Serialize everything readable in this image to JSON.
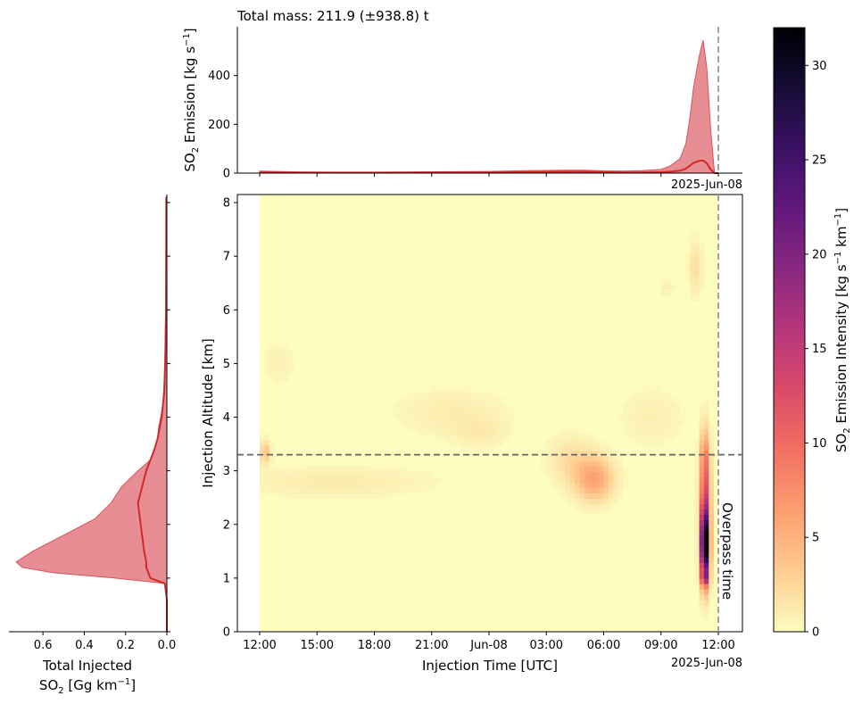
{
  "chart_data": [
    {
      "panel": "top",
      "type": "area",
      "title": "Total mass: 211.9 (±938.8) t",
      "ylabel_main": "SO",
      "ylabel_sub": "2",
      "ylabel_rest": " Emission [kg s",
      "ylabel_sup": "−1",
      "ylabel_close": "]",
      "ylim": [
        0,
        600
      ],
      "yticks": [
        0,
        200,
        400
      ],
      "x_corner_label": "2025-Jun-08",
      "x_hours": [
        0,
        2,
        4,
        6,
        8,
        10,
        12,
        14,
        16,
        17,
        18,
        19,
        20,
        21,
        21.5,
        22,
        22.3,
        22.5,
        22.7,
        23,
        23.2,
        23.4,
        23.6,
        23.8,
        24
      ],
      "upper": [
        8,
        5,
        4,
        4,
        5,
        6,
        7,
        10,
        12,
        12,
        9,
        8,
        10,
        15,
        30,
        60,
        120,
        220,
        350,
        480,
        545,
        430,
        180,
        0,
        0
      ],
      "line": [
        3,
        2,
        2,
        2,
        2,
        3,
        3,
        4,
        6,
        6,
        4,
        3,
        3,
        4,
        6,
        10,
        18,
        30,
        42,
        50,
        52,
        40,
        15,
        0,
        0
      ],
      "overpass_hour": 24
    },
    {
      "panel": "left",
      "type": "area",
      "xlabel_line1": "Total Injected",
      "xlabel_line2_main": "SO",
      "xlabel_line2_sub": "2",
      "xlabel_line2_rest": " [Gg km",
      "xlabel_line2_sup": "−1",
      "xlabel_line2_close": "]",
      "xlim": [
        0.75,
        0
      ],
      "xticks": [
        0.6,
        0.4,
        0.2,
        0.0
      ],
      "xticklabels": [
        "0.6",
        "0.4",
        "0.2",
        "0.0"
      ],
      "altitudes_km": [
        0,
        0.6,
        0.9,
        1.0,
        1.1,
        1.2,
        1.3,
        1.5,
        1.8,
        2.1,
        2.4,
        2.7,
        3.0,
        3.2,
        3.4,
        3.6,
        3.8,
        4.0,
        4.2,
        4.5,
        5.0,
        6.0,
        7.0,
        8.1
      ],
      "upper": [
        0,
        0,
        0.01,
        0.25,
        0.55,
        0.7,
        0.73,
        0.65,
        0.5,
        0.35,
        0.27,
        0.22,
        0.14,
        0.08,
        0.06,
        0.045,
        0.04,
        0.03,
        0.02,
        0.015,
        0.01,
        0.005,
        0.005,
        0.005
      ],
      "line": [
        0,
        0,
        0.01,
        0.08,
        0.09,
        0.1,
        0.1,
        0.11,
        0.12,
        0.13,
        0.14,
        0.12,
        0.1,
        0.08,
        0.06,
        0.045,
        0.035,
        0.025,
        0.02,
        0.012,
        0.008,
        0.004,
        0.003,
        0.002
      ]
    },
    {
      "panel": "main",
      "type": "heatmap",
      "xlabel": "Injection Time [UTC]",
      "ylabel": "Injection Altitude [km]",
      "x_tick_hours": [
        0,
        3,
        6,
        9,
        12,
        15,
        18,
        21,
        24
      ],
      "x_tick_labels": [
        "12:00",
        "15:00",
        "18:00",
        "21:00",
        "Jun-08",
        "03:00",
        "06:00",
        "09:00",
        "12:00"
      ],
      "x_corner_label": "2025-Jun-08",
      "ylim": [
        0,
        8.15
      ],
      "yticks": [
        0,
        1,
        2,
        3,
        4,
        5,
        6,
        7,
        8
      ],
      "reference_altitude_km": 3.3,
      "overpass_hour": 24,
      "overpass_label": "Overpass time",
      "blobs": [
        {
          "hour": 23.3,
          "alt": 1.6,
          "sh": 0.15,
          "sa": 0.45,
          "value": 32
        },
        {
          "hour": 23.3,
          "alt": 2.5,
          "sh": 0.18,
          "sa": 0.7,
          "value": 12
        },
        {
          "hour": 23.3,
          "alt": 1.0,
          "sh": 0.15,
          "sa": 0.08,
          "value": 8
        },
        {
          "hour": 23.3,
          "alt": 3.3,
          "sh": 0.15,
          "sa": 0.3,
          "value": 3
        },
        {
          "hour": 22.8,
          "alt": 6.8,
          "sh": 0.25,
          "sa": 0.35,
          "value": 2
        },
        {
          "hour": 21.3,
          "alt": 6.4,
          "sh": 0.25,
          "sa": 0.1,
          "value": 1
        },
        {
          "hour": 17.5,
          "alt": 2.85,
          "sh": 0.7,
          "sa": 0.28,
          "value": 6
        },
        {
          "hour": 16.3,
          "alt": 3.2,
          "sh": 0.8,
          "sa": 0.3,
          "value": 2
        },
        {
          "hour": 0.3,
          "alt": 3.35,
          "sh": 0.18,
          "sa": 0.15,
          "value": 4
        },
        {
          "hour": 4.0,
          "alt": 2.8,
          "sh": 3.5,
          "sa": 0.2,
          "value": 1.2
        },
        {
          "hour": 10.0,
          "alt": 4.1,
          "sh": 2.0,
          "sa": 0.3,
          "value": 1.1
        },
        {
          "hour": 11.5,
          "alt": 3.7,
          "sh": 1.0,
          "sa": 0.2,
          "value": 1.0
        },
        {
          "hour": 1.0,
          "alt": 5.0,
          "sh": 0.6,
          "sa": 0.3,
          "value": 0.8
        },
        {
          "hour": 20.5,
          "alt": 4.0,
          "sh": 1.2,
          "sa": 0.4,
          "value": 0.9
        }
      ]
    },
    {
      "panel": "colorbar",
      "type": "colorbar",
      "label_main": "SO",
      "label_sub": "2",
      "label_rest": " Emission Intensity [kg s",
      "label_sup": "−1",
      "label_mid": " km",
      "label_sup2": "−1",
      "label_close": "]",
      "vmin": 0,
      "vmax": 32,
      "ticks": [
        0,
        5,
        10,
        15,
        20,
        25,
        30
      ],
      "colormap": "magma_r"
    }
  ]
}
